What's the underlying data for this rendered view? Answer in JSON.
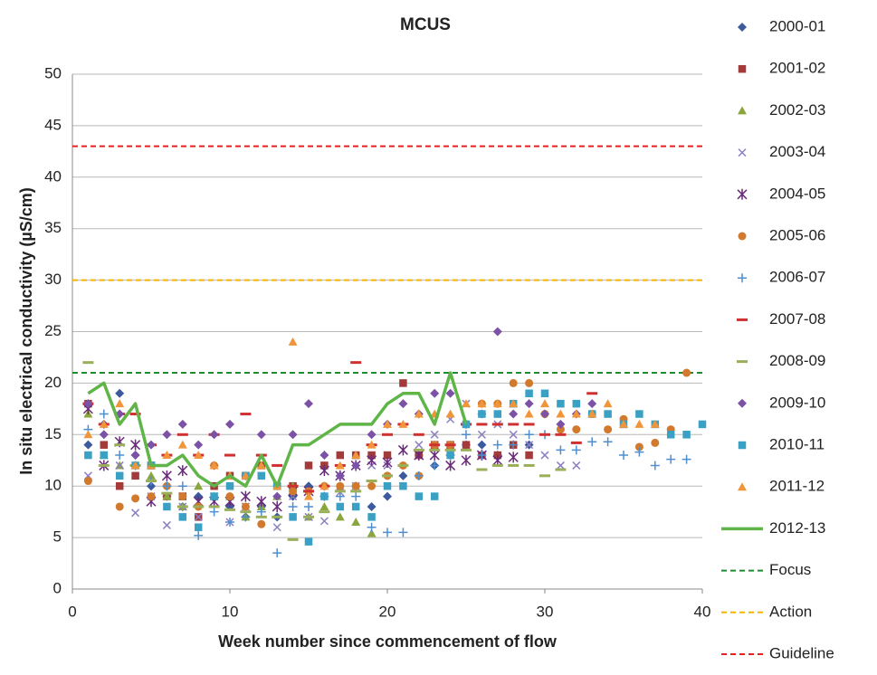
{
  "chart_data": {
    "type": "scatter",
    "title": "MCUS",
    "x_label": "Week number since commencement of flow",
    "y_label": "In situ electrical conductivity (µS/cm)",
    "xlim": [
      0,
      40
    ],
    "xticks": [
      0,
      10,
      20,
      30,
      40
    ],
    "ylim": [
      0,
      50
    ],
    "yticks": [
      0,
      5,
      10,
      15,
      20,
      25,
      30,
      35,
      40,
      45,
      50
    ],
    "grid": true,
    "legend": "right",
    "series": [
      {
        "name": "2000-01",
        "color": "#3d5a9e",
        "marker": "diamond",
        "x": [
          1,
          2,
          3,
          4,
          5,
          6,
          7,
          8,
          9,
          10,
          11,
          12,
          13,
          14,
          15,
          16,
          17,
          18,
          19,
          20,
          21,
          22,
          23,
          24,
          25,
          26,
          27,
          28,
          29
        ],
        "values": [
          14,
          16,
          19,
          13,
          10,
          9,
          8,
          9,
          12,
          8,
          7,
          8,
          7,
          9,
          10,
          10,
          11,
          10,
          8,
          9,
          11,
          13,
          12,
          13,
          14,
          14,
          13,
          14,
          14
        ]
      },
      {
        "name": "2001-02",
        "color": "#a33b3b",
        "marker": "square",
        "x": [
          1,
          2,
          3,
          4,
          5,
          6,
          7,
          8,
          9,
          10,
          11,
          12,
          13,
          14,
          15,
          16,
          17,
          18,
          19,
          20,
          21,
          22,
          23,
          24,
          25,
          26,
          27,
          28,
          29
        ],
        "values": [
          18,
          14,
          10,
          11,
          12,
          9,
          9,
          7,
          10,
          11,
          11,
          12,
          10,
          10,
          12,
          12,
          13,
          13,
          13,
          13,
          20,
          13,
          14,
          14,
          14,
          13,
          13,
          14,
          13
        ]
      },
      {
        "name": "2002-03",
        "color": "#8aa63c",
        "marker": "triangle",
        "x": [
          1,
          2,
          3,
          4,
          5,
          6,
          7,
          8,
          9,
          10,
          11,
          12,
          13,
          14,
          15,
          16,
          17,
          18,
          19
        ],
        "values": [
          17,
          13,
          12,
          12,
          11,
          9,
          8,
          10,
          9,
          9,
          7,
          8,
          9,
          10,
          7,
          8,
          7,
          6.5,
          5.4
        ]
      },
      {
        "name": "2003-04",
        "color": "#8d7fc2",
        "marker": "x",
        "x": [
          1,
          2,
          3,
          4,
          5,
          6,
          7,
          8,
          9,
          10,
          11,
          12,
          13,
          14,
          15,
          16,
          17,
          18,
          19,
          20,
          21,
          22,
          23,
          24,
          25,
          26,
          27,
          28,
          29,
          30,
          31,
          32
        ],
        "values": [
          11,
          13,
          12,
          7.4,
          9,
          6.2,
          8,
          7,
          9,
          6.5,
          8,
          8.5,
          6,
          9,
          7,
          6.6,
          9.4,
          10,
          12,
          12,
          13.5,
          14,
          15,
          16.5,
          18,
          15,
          16,
          15,
          14,
          13,
          12,
          12
        ]
      },
      {
        "name": "2004-05",
        "color": "#6a2a7a",
        "marker": "asterisk",
        "x": [
          1,
          2,
          3,
          4,
          5,
          6,
          7,
          8,
          9,
          10,
          11,
          12,
          13,
          14,
          15,
          16,
          17,
          18,
          19,
          20,
          21,
          22,
          23,
          24,
          25,
          26,
          27,
          28
        ],
        "values": [
          17.5,
          12,
          14.3,
          14,
          8.5,
          11,
          11.5,
          8.5,
          8.5,
          8.5,
          9,
          8.5,
          8,
          9.5,
          9.5,
          11.5,
          11,
          12,
          12.5,
          12.3,
          13.5,
          13,
          13,
          12,
          12.5,
          13,
          12.5,
          12.8
        ]
      },
      {
        "name": "2005-06",
        "color": "#d17a2e",
        "marker": "circle",
        "x": [
          1,
          3,
          4,
          5,
          6,
          7,
          8,
          9,
          10,
          11,
          12,
          13,
          14,
          15,
          16,
          17,
          18,
          19,
          20,
          21,
          22,
          23,
          24,
          25,
          26,
          27,
          28,
          29,
          30,
          31,
          32,
          33,
          34,
          35,
          36,
          37,
          38,
          39
        ],
        "values": [
          10.5,
          8,
          8.8,
          9,
          10,
          9,
          8,
          12,
          9,
          8,
          6.3,
          10,
          9.5,
          9.5,
          10,
          10,
          10,
          10,
          11,
          12,
          11,
          14,
          14,
          16,
          18,
          18,
          20,
          20,
          17,
          15.5,
          15.5,
          17,
          15.5,
          16.5,
          13.8,
          14.2,
          15.5,
          21
        ]
      },
      {
        "name": "2006-07",
        "color": "#4f8fd0",
        "marker": "plus",
        "x": [
          1,
          2,
          3,
          4,
          5,
          6,
          7,
          8,
          9,
          10,
          11,
          12,
          13,
          14,
          15,
          16,
          17,
          18,
          19,
          20,
          21,
          22,
          23,
          24,
          25,
          26,
          27,
          28,
          29,
          30,
          31,
          32,
          33,
          34,
          35,
          36,
          37,
          38,
          39
        ],
        "values": [
          15.5,
          17,
          13,
          12,
          10.5,
          10,
          10,
          5.2,
          7.5,
          6.5,
          7,
          7.5,
          3.5,
          8,
          8,
          9,
          9,
          9,
          6,
          5.5,
          5.5,
          11,
          12,
          13,
          15,
          13,
          14,
          14,
          15,
          15,
          13.5,
          13.5,
          14.3,
          14.3,
          13,
          13.3,
          12,
          12.6,
          12.6
        ]
      },
      {
        "name": "2007-08",
        "color": "#d03030",
        "marker": "dash",
        "x": [
          1,
          2,
          3,
          4,
          5,
          6,
          7,
          8,
          9,
          10,
          11,
          12,
          13,
          14,
          15,
          16,
          17,
          18,
          19,
          20,
          21,
          22,
          23,
          24,
          25,
          26,
          27,
          28,
          29,
          30,
          31,
          32,
          33
        ],
        "values": [
          18,
          16,
          17,
          17,
          14,
          13,
          15,
          13,
          15,
          13,
          17,
          13,
          12,
          10,
          9.5,
          10,
          12,
          22,
          14,
          15,
          16,
          15,
          14,
          14,
          16,
          16,
          16,
          16,
          16,
          15,
          15,
          14.2,
          19
        ]
      },
      {
        "name": "2008-09",
        "color": "#9aaf5a",
        "marker": "dash",
        "x": [
          1,
          2,
          3,
          4,
          5,
          6,
          7,
          8,
          9,
          10,
          11,
          12,
          13,
          14,
          15,
          16,
          17,
          18,
          19,
          20,
          21,
          22,
          23,
          24,
          25,
          26,
          27,
          28,
          29,
          30,
          31
        ],
        "values": [
          22,
          12,
          14,
          12,
          10.5,
          9.3,
          8,
          8,
          8,
          7.7,
          7.5,
          7,
          7,
          4.8,
          7,
          7.5,
          9.5,
          9.5,
          10.5,
          11,
          12,
          13.5,
          13.5,
          13.5,
          13.5,
          11.6,
          12,
          12,
          12,
          11,
          11.6
        ]
      },
      {
        "name": "2009-10",
        "color": "#7b52a6",
        "marker": "diamond",
        "x": [
          1,
          2,
          3,
          4,
          5,
          6,
          7,
          8,
          9,
          10,
          11,
          12,
          13,
          14,
          15,
          16,
          17,
          18,
          19,
          20,
          21,
          22,
          23,
          24,
          25,
          26,
          27,
          28,
          29,
          30,
          31,
          32,
          33
        ],
        "values": [
          18,
          15,
          17,
          13,
          14,
          15,
          16,
          14,
          15,
          16,
          11,
          15,
          9,
          15,
          18,
          13,
          11,
          12,
          15,
          16,
          18,
          17,
          19,
          19,
          16,
          17,
          25,
          17,
          18,
          17,
          16,
          17,
          18
        ]
      },
      {
        "name": "2010-11",
        "color": "#3aa0c4",
        "marker": "square",
        "x": [
          1,
          2,
          3,
          4,
          5,
          6,
          7,
          8,
          9,
          10,
          11,
          12,
          13,
          14,
          15,
          16,
          17,
          18,
          19,
          20,
          21,
          22,
          23,
          24,
          25,
          26,
          27,
          28,
          29,
          30,
          31,
          32,
          33,
          34,
          35,
          36,
          37,
          38,
          39,
          40
        ],
        "values": [
          13,
          13,
          11,
          12,
          12,
          8,
          7,
          6,
          9,
          10,
          11,
          11,
          10,
          7,
          4.6,
          9,
          8,
          8,
          7,
          10,
          10,
          9,
          9,
          13,
          16,
          17,
          17,
          18,
          19,
          19,
          18,
          18,
          17,
          17,
          16,
          17,
          16,
          15,
          15,
          16
        ]
      },
      {
        "name": "2011-12",
        "color": "#f0953a",
        "marker": "triangle",
        "x": [
          1,
          2,
          3,
          4,
          5,
          6,
          7,
          8,
          9,
          10,
          11,
          12,
          13,
          14,
          15,
          16,
          17,
          18,
          19,
          20,
          21,
          22,
          23,
          24,
          25,
          26,
          27,
          28,
          29,
          30,
          31,
          32,
          33,
          34,
          35,
          36,
          37
        ],
        "values": [
          15,
          16,
          18,
          12,
          12,
          13,
          14,
          13,
          12,
          11,
          11,
          12,
          10,
          24,
          9,
          10,
          12,
          13,
          14,
          16,
          16,
          17,
          17,
          17,
          18,
          18,
          18,
          18,
          17,
          18,
          17,
          17,
          17,
          18,
          16,
          16,
          16
        ]
      },
      {
        "name": "2012-13",
        "color": "#5fb548",
        "marker": "line",
        "x": [
          1,
          2,
          3,
          4,
          5,
          6,
          7,
          8,
          9,
          10,
          11,
          12,
          13,
          14,
          15,
          16,
          17,
          18,
          19,
          20,
          21,
          22,
          23,
          24,
          25
        ],
        "values": [
          19,
          20,
          16,
          18,
          12,
          12,
          13,
          11,
          10,
          11,
          10,
          13,
          10,
          14,
          14,
          15,
          16,
          16,
          16,
          18,
          19,
          19,
          16,
          21,
          16
        ]
      }
    ],
    "reference_lines": [
      {
        "name": "Focus",
        "value": 21,
        "color": "#1e8c2e"
      },
      {
        "name": "Action",
        "value": 30,
        "color": "#f4b400"
      },
      {
        "name": "Guideline",
        "value": 43,
        "color": "#e82020"
      }
    ]
  }
}
